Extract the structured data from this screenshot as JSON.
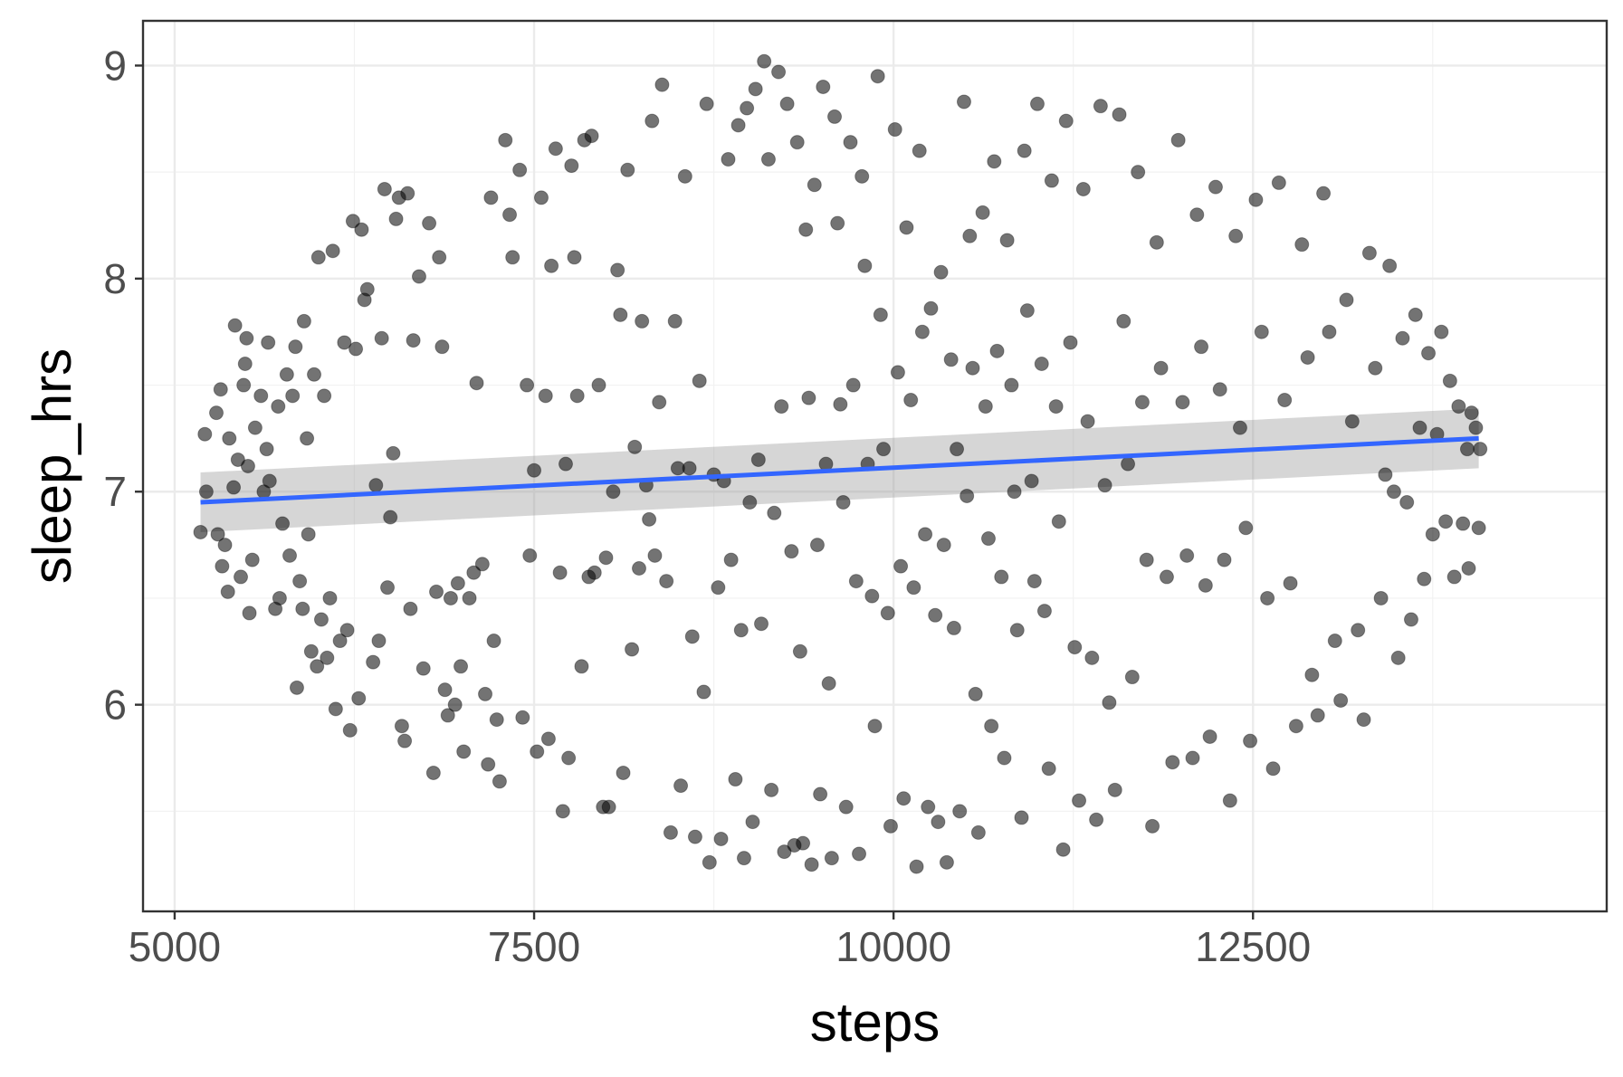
{
  "chart_data": {
    "type": "scatter",
    "xlabel": "steps",
    "ylabel": "sleep_hrs",
    "xlim": [
      4780,
      14960
    ],
    "ylim": [
      5.03,
      9.21
    ],
    "x_ticks": [
      5000,
      7500,
      10000,
      12500
    ],
    "x_tick_labels": [
      "5000",
      "7500",
      "10000",
      "12500"
    ],
    "x_minor_ticks": [
      6250,
      8750,
      11250,
      13750
    ],
    "y_ticks": [
      6,
      7,
      8,
      9
    ],
    "y_tick_labels": [
      "6",
      "7",
      "8",
      "9"
    ],
    "y_minor_ticks": [
      5.5,
      6.5,
      7.5,
      8.5
    ],
    "grid": true,
    "legend": "none",
    "point_color": "#000000",
    "point_opacity": 0.6,
    "trend_line": {
      "method": "linear",
      "color": "#3366ff",
      "band_color": "#999999",
      "x": [
        5180,
        14070
      ],
      "y": [
        6.95,
        7.25
      ],
      "ci_low": [
        6.81,
        7.11
      ],
      "ci_high": [
        7.09,
        7.39
      ]
    },
    "points": [
      [
        5180,
        6.81
      ],
      [
        5210,
        7.27
      ],
      [
        5220,
        7.0
      ],
      [
        5290,
        7.37
      ],
      [
        5300,
        6.8
      ],
      [
        5320,
        7.48
      ],
      [
        5330,
        6.65
      ],
      [
        5350,
        6.75
      ],
      [
        5370,
        6.53
      ],
      [
        5380,
        7.25
      ],
      [
        5410,
        7.02
      ],
      [
        5420,
        7.78
      ],
      [
        5440,
        7.15
      ],
      [
        5460,
        6.6
      ],
      [
        5480,
        7.5
      ],
      [
        5490,
        7.6
      ],
      [
        5500,
        7.72
      ],
      [
        5510,
        7.12
      ],
      [
        5520,
        6.43
      ],
      [
        5540,
        6.68
      ],
      [
        5560,
        7.3
      ],
      [
        5600,
        7.45
      ],
      [
        5620,
        7.0
      ],
      [
        5640,
        7.2
      ],
      [
        5650,
        7.7
      ],
      [
        5660,
        7.05
      ],
      [
        5700,
        6.45
      ],
      [
        5720,
        7.4
      ],
      [
        5730,
        6.5
      ],
      [
        5750,
        6.85
      ],
      [
        5780,
        7.55
      ],
      [
        5800,
        6.7
      ],
      [
        5820,
        7.45
      ],
      [
        5840,
        7.68
      ],
      [
        5850,
        6.08
      ],
      [
        5870,
        6.58
      ],
      [
        5890,
        6.45
      ],
      [
        5900,
        7.8
      ],
      [
        5920,
        7.25
      ],
      [
        5930,
        6.8
      ],
      [
        5950,
        6.25
      ],
      [
        5970,
        7.55
      ],
      [
        5990,
        6.18
      ],
      [
        6000,
        8.1
      ],
      [
        6020,
        6.4
      ],
      [
        6040,
        7.45
      ],
      [
        6060,
        6.22
      ],
      [
        6080,
        6.5
      ],
      [
        6100,
        8.13
      ],
      [
        6120,
        5.98
      ],
      [
        6150,
        6.3
      ],
      [
        6180,
        7.7
      ],
      [
        6200,
        6.35
      ],
      [
        6220,
        5.88
      ],
      [
        6240,
        8.27
      ],
      [
        6260,
        7.67
      ],
      [
        6280,
        6.03
      ],
      [
        6300,
        8.23
      ],
      [
        6320,
        7.9
      ],
      [
        6340,
        7.95
      ],
      [
        6380,
        6.2
      ],
      [
        6400,
        7.03
      ],
      [
        6420,
        6.3
      ],
      [
        6440,
        7.72
      ],
      [
        6460,
        8.42
      ],
      [
        6480,
        6.55
      ],
      [
        6500,
        6.88
      ],
      [
        6520,
        7.18
      ],
      [
        6540,
        8.28
      ],
      [
        6560,
        8.38
      ],
      [
        6580,
        5.9
      ],
      [
        6600,
        5.83
      ],
      [
        6620,
        8.4
      ],
      [
        6640,
        6.45
      ],
      [
        6660,
        7.71
      ],
      [
        6700,
        8.01
      ],
      [
        6730,
        6.17
      ],
      [
        6770,
        8.26
      ],
      [
        6800,
        5.68
      ],
      [
        6820,
        6.53
      ],
      [
        6840,
        8.1
      ],
      [
        6860,
        7.68
      ],
      [
        6880,
        6.07
      ],
      [
        6900,
        5.95
      ],
      [
        6920,
        6.5
      ],
      [
        6950,
        6.0
      ],
      [
        6970,
        6.57
      ],
      [
        6990,
        6.18
      ],
      [
        7010,
        5.78
      ],
      [
        7050,
        6.5
      ],
      [
        7080,
        6.62
      ],
      [
        7100,
        7.51
      ],
      [
        7140,
        6.66
      ],
      [
        7160,
        6.05
      ],
      [
        7180,
        5.72
      ],
      [
        7200,
        8.38
      ],
      [
        7220,
        6.3
      ],
      [
        7240,
        5.93
      ],
      [
        7260,
        5.64
      ],
      [
        7300,
        8.65
      ],
      [
        7330,
        8.3
      ],
      [
        7350,
        8.1
      ],
      [
        7400,
        8.51
      ],
      [
        7420,
        5.94
      ],
      [
        7450,
        7.5
      ],
      [
        7470,
        6.7
      ],
      [
        7500,
        7.1
      ],
      [
        7520,
        5.78
      ],
      [
        7550,
        8.38
      ],
      [
        7580,
        7.45
      ],
      [
        7600,
        5.84
      ],
      [
        7620,
        8.06
      ],
      [
        7650,
        8.61
      ],
      [
        7680,
        6.62
      ],
      [
        7700,
        5.5
      ],
      [
        7720,
        7.13
      ],
      [
        7740,
        5.75
      ],
      [
        7760,
        8.53
      ],
      [
        7780,
        8.1
      ],
      [
        7800,
        7.45
      ],
      [
        7830,
        6.18
      ],
      [
        7850,
        8.65
      ],
      [
        7880,
        6.6
      ],
      [
        7900,
        8.67
      ],
      [
        7920,
        6.62
      ],
      [
        7950,
        7.5
      ],
      [
        7980,
        5.52
      ],
      [
        8000,
        6.69
      ],
      [
        8020,
        5.52
      ],
      [
        8050,
        7.0
      ],
      [
        8080,
        8.04
      ],
      [
        8100,
        7.83
      ],
      [
        8120,
        5.68
      ],
      [
        8150,
        8.51
      ],
      [
        8180,
        6.26
      ],
      [
        8200,
        7.21
      ],
      [
        8230,
        6.64
      ],
      [
        8250,
        7.8
      ],
      [
        8280,
        7.03
      ],
      [
        8300,
        6.87
      ],
      [
        8320,
        8.74
      ],
      [
        8340,
        6.7
      ],
      [
        8370,
        7.42
      ],
      [
        8390,
        8.91
      ],
      [
        8420,
        6.58
      ],
      [
        8450,
        5.4
      ],
      [
        8480,
        7.8
      ],
      [
        8500,
        7.11
      ],
      [
        8520,
        5.62
      ],
      [
        8550,
        8.48
      ],
      [
        8580,
        7.11
      ],
      [
        8600,
        6.32
      ],
      [
        8620,
        5.38
      ],
      [
        8650,
        7.52
      ],
      [
        8680,
        6.06
      ],
      [
        8700,
        8.82
      ],
      [
        8720,
        5.26
      ],
      [
        8750,
        7.08
      ],
      [
        8780,
        6.55
      ],
      [
        8800,
        5.37
      ],
      [
        8820,
        7.05
      ],
      [
        8850,
        8.56
      ],
      [
        8870,
        6.68
      ],
      [
        8900,
        5.65
      ],
      [
        8920,
        8.72
      ],
      [
        8940,
        6.35
      ],
      [
        8960,
        5.28
      ],
      [
        8980,
        8.8
      ],
      [
        9000,
        6.95
      ],
      [
        9020,
        5.45
      ],
      [
        9040,
        8.89
      ],
      [
        9060,
        7.15
      ],
      [
        9080,
        6.38
      ],
      [
        9100,
        9.02
      ],
      [
        9130,
        8.56
      ],
      [
        9150,
        5.6
      ],
      [
        9170,
        6.9
      ],
      [
        9200,
        8.97
      ],
      [
        9220,
        7.4
      ],
      [
        9240,
        5.31
      ],
      [
        9260,
        8.82
      ],
      [
        9290,
        6.72
      ],
      [
        9310,
        5.34
      ],
      [
        9330,
        8.64
      ],
      [
        9350,
        6.25
      ],
      [
        9370,
        5.35
      ],
      [
        9390,
        8.23
      ],
      [
        9410,
        7.44
      ],
      [
        9430,
        5.25
      ],
      [
        9450,
        8.44
      ],
      [
        9470,
        6.75
      ],
      [
        9490,
        5.58
      ],
      [
        9510,
        8.9
      ],
      [
        9530,
        7.13
      ],
      [
        9550,
        6.1
      ],
      [
        9570,
        5.28
      ],
      [
        9590,
        8.76
      ],
      [
        9610,
        8.26
      ],
      [
        9630,
        7.41
      ],
      [
        9650,
        6.95
      ],
      [
        9670,
        5.52
      ],
      [
        9700,
        8.64
      ],
      [
        9720,
        7.5
      ],
      [
        9740,
        6.58
      ],
      [
        9760,
        5.3
      ],
      [
        9780,
        8.48
      ],
      [
        9800,
        8.06
      ],
      [
        9820,
        7.13
      ],
      [
        9850,
        6.51
      ],
      [
        9870,
        5.9
      ],
      [
        9890,
        8.95
      ],
      [
        9910,
        7.83
      ],
      [
        9930,
        7.2
      ],
      [
        9960,
        6.43
      ],
      [
        9980,
        5.43
      ],
      [
        10010,
        8.7
      ],
      [
        10030,
        7.56
      ],
      [
        10050,
        6.65
      ],
      [
        10070,
        5.56
      ],
      [
        10090,
        8.24
      ],
      [
        10120,
        7.43
      ],
      [
        10140,
        6.55
      ],
      [
        10160,
        5.24
      ],
      [
        10180,
        8.6
      ],
      [
        10200,
        7.75
      ],
      [
        10220,
        6.8
      ],
      [
        10240,
        5.52
      ],
      [
        10260,
        7.86
      ],
      [
        10290,
        6.42
      ],
      [
        10310,
        5.45
      ],
      [
        10330,
        8.03
      ],
      [
        10350,
        6.75
      ],
      [
        10370,
        5.26
      ],
      [
        10400,
        7.62
      ],
      [
        10420,
        6.36
      ],
      [
        10440,
        7.2
      ],
      [
        10460,
        5.5
      ],
      [
        10490,
        8.83
      ],
      [
        10510,
        6.98
      ],
      [
        10530,
        8.2
      ],
      [
        10550,
        7.58
      ],
      [
        10570,
        6.05
      ],
      [
        10590,
        5.4
      ],
      [
        10620,
        8.31
      ],
      [
        10640,
        7.4
      ],
      [
        10660,
        6.78
      ],
      [
        10680,
        5.9
      ],
      [
        10700,
        8.55
      ],
      [
        10720,
        7.66
      ],
      [
        10750,
        6.6
      ],
      [
        10770,
        5.75
      ],
      [
        10790,
        8.18
      ],
      [
        10820,
        7.5
      ],
      [
        10840,
        7.0
      ],
      [
        10860,
        6.35
      ],
      [
        10890,
        5.47
      ],
      [
        10910,
        8.6
      ],
      [
        10930,
        7.85
      ],
      [
        10960,
        7.05
      ],
      [
        10980,
        6.58
      ],
      [
        11000,
        8.82
      ],
      [
        11030,
        7.6
      ],
      [
        11050,
        6.44
      ],
      [
        11080,
        5.7
      ],
      [
        11100,
        8.46
      ],
      [
        11130,
        7.4
      ],
      [
        11150,
        6.86
      ],
      [
        11180,
        5.32
      ],
      [
        11200,
        8.74
      ],
      [
        11230,
        7.7
      ],
      [
        11260,
        6.27
      ],
      [
        11290,
        5.55
      ],
      [
        11320,
        8.42
      ],
      [
        11350,
        7.33
      ],
      [
        11380,
        6.22
      ],
      [
        11410,
        5.46
      ],
      [
        11440,
        8.81
      ],
      [
        11470,
        7.03
      ],
      [
        11500,
        6.01
      ],
      [
        11540,
        5.6
      ],
      [
        11570,
        8.77
      ],
      [
        11600,
        7.8
      ],
      [
        11630,
        7.13
      ],
      [
        11660,
        6.13
      ],
      [
        11700,
        8.5
      ],
      [
        11730,
        7.42
      ],
      [
        11760,
        6.68
      ],
      [
        11800,
        5.43
      ],
      [
        11830,
        8.17
      ],
      [
        11860,
        7.58
      ],
      [
        11900,
        6.6
      ],
      [
        11940,
        5.73
      ],
      [
        11980,
        8.65
      ],
      [
        12010,
        7.42
      ],
      [
        12040,
        6.7
      ],
      [
        12080,
        5.75
      ],
      [
        12110,
        8.3
      ],
      [
        12140,
        7.68
      ],
      [
        12170,
        6.56
      ],
      [
        12200,
        5.85
      ],
      [
        12240,
        8.43
      ],
      [
        12270,
        7.48
      ],
      [
        12300,
        6.68
      ],
      [
        12340,
        5.55
      ],
      [
        12380,
        8.2
      ],
      [
        12410,
        7.3
      ],
      [
        12450,
        6.83
      ],
      [
        12480,
        5.83
      ],
      [
        12520,
        8.37
      ],
      [
        12560,
        7.75
      ],
      [
        12600,
        6.5
      ],
      [
        12640,
        5.7
      ],
      [
        12680,
        8.45
      ],
      [
        12720,
        7.43
      ],
      [
        12760,
        6.57
      ],
      [
        12800,
        5.9
      ],
      [
        12840,
        8.16
      ],
      [
        12880,
        7.63
      ],
      [
        12910,
        6.14
      ],
      [
        12950,
        5.95
      ],
      [
        12990,
        8.4
      ],
      [
        13030,
        7.75
      ],
      [
        13070,
        6.3
      ],
      [
        13110,
        6.02
      ],
      [
        13150,
        7.9
      ],
      [
        13190,
        7.33
      ],
      [
        13230,
        6.35
      ],
      [
        13270,
        5.93
      ],
      [
        13310,
        8.12
      ],
      [
        13350,
        7.58
      ],
      [
        13390,
        6.5
      ],
      [
        13420,
        7.08
      ],
      [
        13450,
        8.06
      ],
      [
        13480,
        7.0
      ],
      [
        13510,
        6.22
      ],
      [
        13540,
        7.72
      ],
      [
        13570,
        6.95
      ],
      [
        13600,
        6.4
      ],
      [
        13630,
        7.83
      ],
      [
        13660,
        7.3
      ],
      [
        13690,
        6.59
      ],
      [
        13720,
        7.65
      ],
      [
        13750,
        6.8
      ],
      [
        13780,
        7.27
      ],
      [
        13810,
        7.75
      ],
      [
        13840,
        6.86
      ],
      [
        13870,
        7.52
      ],
      [
        13900,
        6.6
      ],
      [
        13930,
        7.4
      ],
      [
        13960,
        6.85
      ],
      [
        13990,
        7.2
      ],
      [
        14020,
        7.37
      ],
      [
        14050,
        7.3
      ],
      [
        14070,
        6.83
      ],
      [
        14080,
        7.2
      ],
      [
        14000,
        6.64
      ]
    ]
  }
}
